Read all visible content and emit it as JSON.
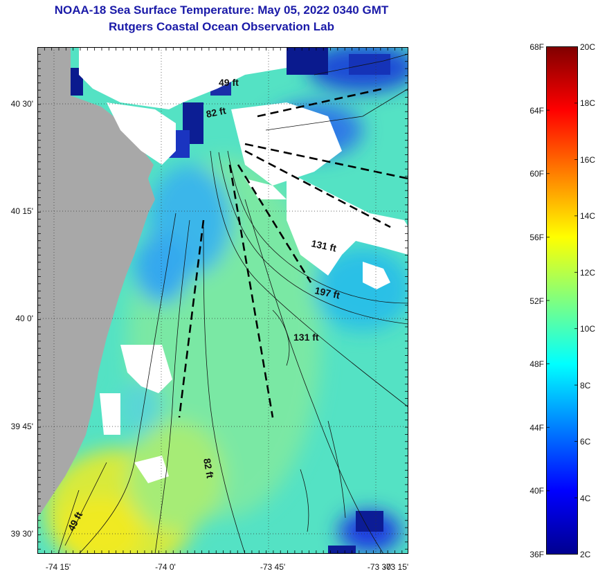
{
  "header": {
    "title": "NOAA-18 Sea Surface Temperature:  May 05, 2022 0340 GMT",
    "subtitle": "Rutgers Coastal Ocean Observation Lab"
  },
  "map": {
    "lat_ticks": [
      {
        "label": "40 30'",
        "lat": 40.5
      },
      {
        "label": "40 15'",
        "lat": 40.25
      },
      {
        "label": "40 0'",
        "lat": 40.0
      },
      {
        "label": "39 45'",
        "lat": 39.75
      },
      {
        "label": "39 30'",
        "lat": 39.5
      }
    ],
    "lon_ticks": [
      {
        "label": "-74 15'",
        "lon": -74.25
      },
      {
        "label": "-74 0'",
        "lon": -74.0
      },
      {
        "label": "-73 45'",
        "lon": -73.75
      },
      {
        "label": "-73 30'",
        "lon": -73.5
      },
      {
        "label": "-73 15'",
        "lon": -73.25
      }
    ],
    "depth_labels": [
      "49 ft",
      "82 ft",
      "131 ft",
      "197 ft",
      "131 ft",
      "82 ft",
      "49 ft"
    ],
    "colors": {
      "land": "#a8a8a8",
      "cloud_mask": "#ffffff",
      "warm": "#e8ea2a",
      "mid": "#4ddcc8",
      "cool": "#2e62e6",
      "cold": "#0a1a8e"
    }
  },
  "colorbar": {
    "fahrenheit_labels": [
      "68F",
      "64F",
      "60F",
      "56F",
      "52F",
      "48F",
      "44F",
      "40F",
      "36F"
    ],
    "celsius_labels": [
      "20C",
      "18C",
      "16C",
      "14C",
      "12C",
      "10C",
      "8C",
      "6C",
      "4C",
      "2C"
    ],
    "range_c": [
      2,
      20
    ],
    "colormap": "jet"
  }
}
